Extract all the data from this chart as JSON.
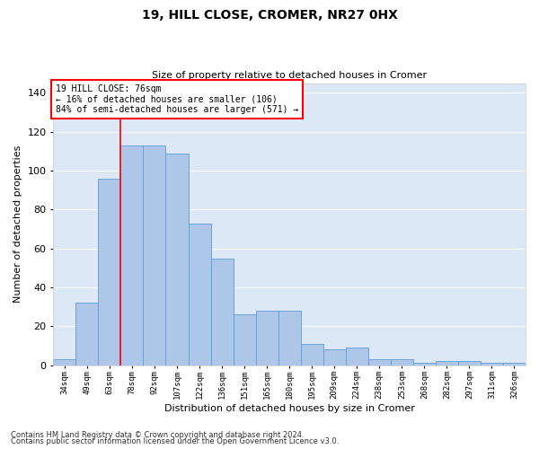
{
  "title1": "19, HILL CLOSE, CROMER, NR27 0HX",
  "title2": "Size of property relative to detached houses in Cromer",
  "xlabel": "Distribution of detached houses by size in Cromer",
  "ylabel": "Number of detached properties",
  "categories": [
    "34sqm",
    "49sqm",
    "63sqm",
    "78sqm",
    "92sqm",
    "107sqm",
    "122sqm",
    "136sqm",
    "151sqm",
    "165sqm",
    "180sqm",
    "195sqm",
    "209sqm",
    "224sqm",
    "238sqm",
    "253sqm",
    "268sqm",
    "282sqm",
    "297sqm",
    "311sqm",
    "326sqm"
  ],
  "values": [
    3,
    32,
    96,
    113,
    113,
    109,
    73,
    55,
    26,
    28,
    28,
    11,
    8,
    9,
    3,
    3,
    1,
    2,
    2,
    1,
    1
  ],
  "bar_color": "#aec6e8",
  "bar_edge_color": "#5a9fd4",
  "marker_index": 3,
  "annotation_title": "19 HILL CLOSE: 76sqm",
  "annotation_line1": "← 16% of detached houses are smaller (106)",
  "annotation_line2": "84% of semi-detached houses are larger (571) →",
  "ylim": [
    0,
    145
  ],
  "yticks": [
    0,
    20,
    40,
    60,
    80,
    100,
    120,
    140
  ],
  "background_color": "#dce8f5",
  "footnote1": "Contains HM Land Registry data © Crown copyright and database right 2024.",
  "footnote2": "Contains public sector information licensed under the Open Government Licence v3.0."
}
